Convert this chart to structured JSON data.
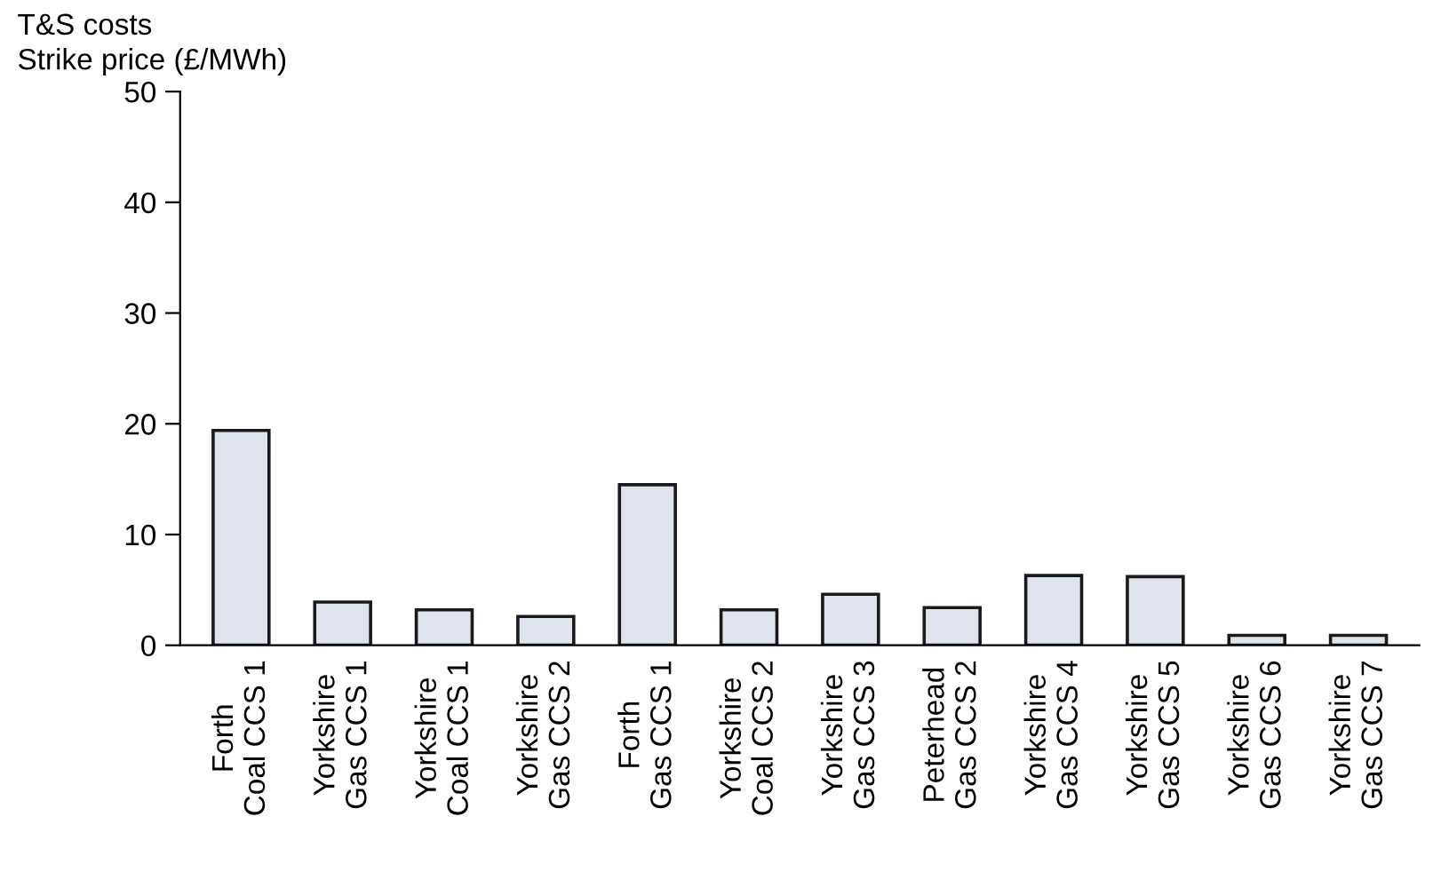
{
  "chart_data": {
    "type": "bar",
    "title": "T&S costs",
    "subtitle": "Strike price (£/MWh)",
    "categories": [
      "Forth\nCoal CCS 1",
      "Yorkshire\nGas CCS 1",
      "Yorkshire\nCoal CCS 1",
      "Yorkshire\nGas CCS 2",
      "Forth\nGas CCS 1",
      "Yorkshire\nCoal CCS 2",
      "Yorkshire\nGas CCS 3",
      "Peterhead\nGas CCS 2",
      "Yorkshire\nGas CCS 4",
      "Yorkshire\nGas CCS 5",
      "Yorkshire\nGas CCS 6",
      "Yorkshire\nGas CCS 7"
    ],
    "values": [
      19.4,
      3.9,
      3.2,
      2.6,
      14.5,
      3.2,
      4.6,
      3.4,
      6.3,
      6.2,
      0.9,
      0.9
    ],
    "color": "#dee3ed",
    "ylim": [
      0,
      50
    ],
    "yticks": [
      0,
      10,
      20,
      30,
      40,
      50
    ],
    "grid": false
  }
}
